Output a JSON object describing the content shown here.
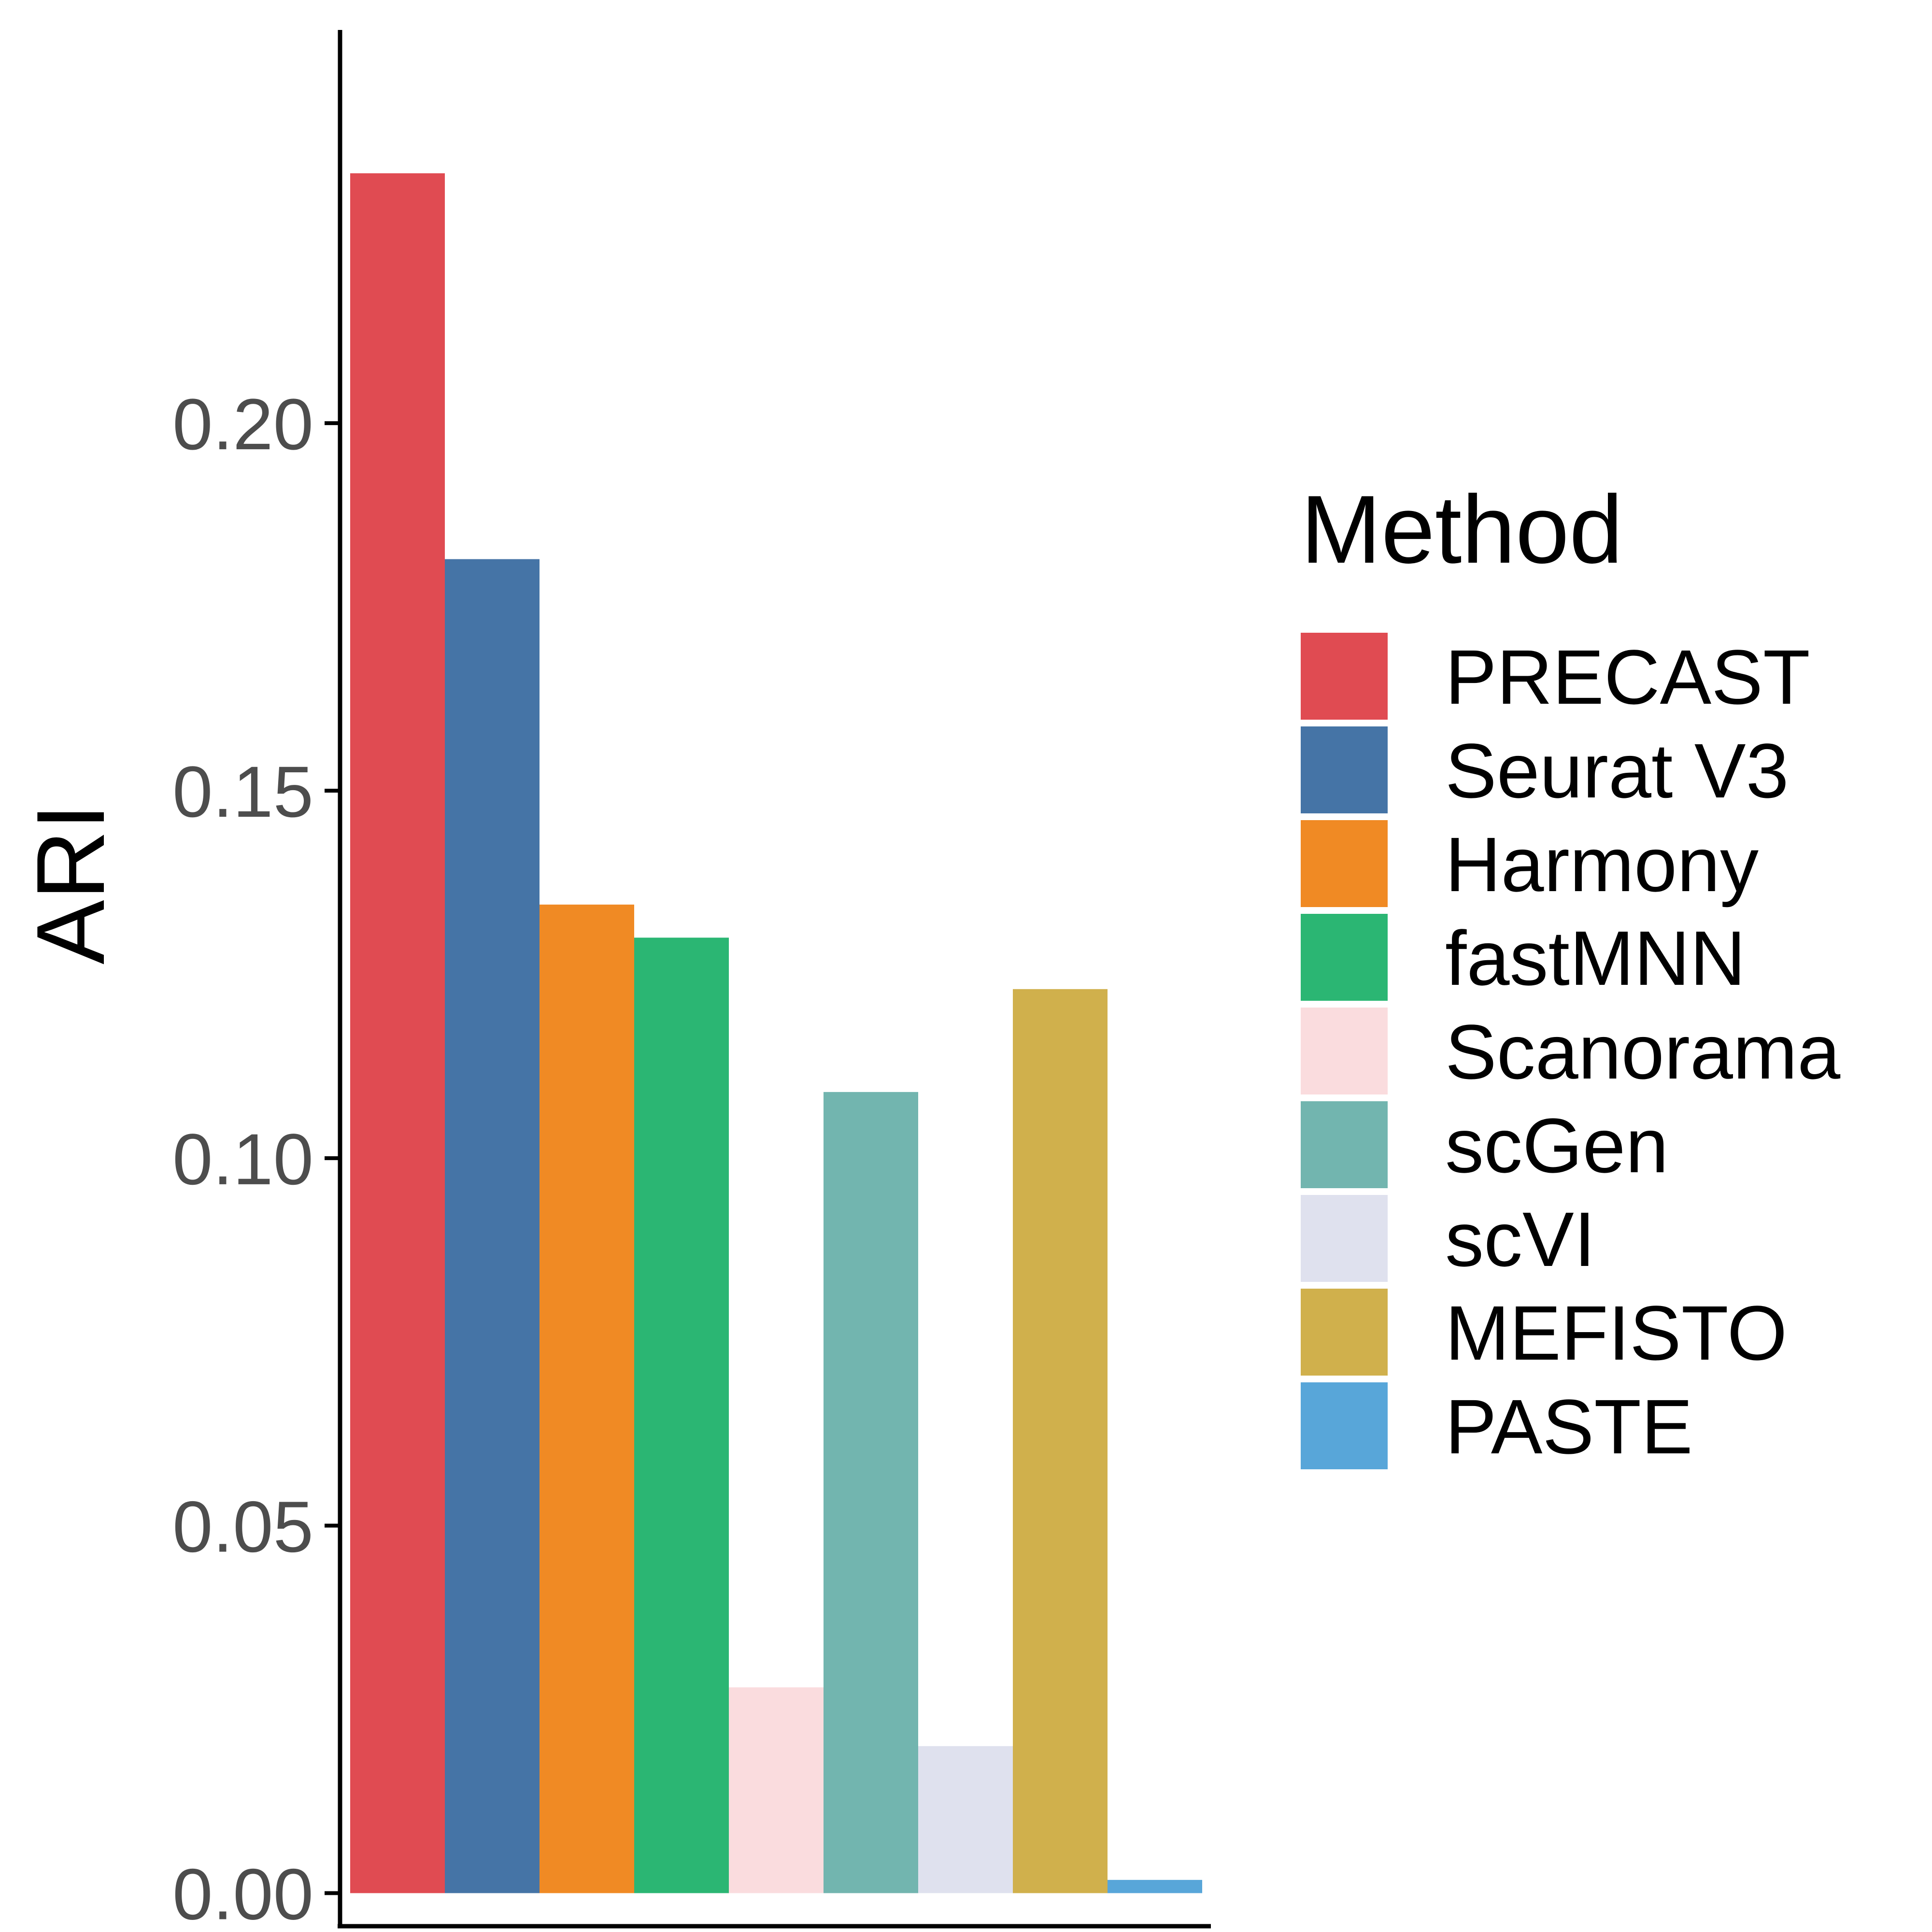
{
  "chart_data": {
    "type": "bar",
    "ylabel": "ARI",
    "legend_title": "Method",
    "legend_position": "right",
    "grid": false,
    "ylim": [
      -0.0045,
      0.2535
    ],
    "yticks": [
      {
        "value": 0.0,
        "label": "0.00"
      },
      {
        "value": 0.05,
        "label": "0.05"
      },
      {
        "value": 0.1,
        "label": "0.10"
      },
      {
        "value": 0.15,
        "label": "0.15"
      },
      {
        "value": 0.2,
        "label": "0.20"
      }
    ],
    "series": [
      {
        "name": "PRECAST",
        "value": 0.234,
        "color": "#E04B52"
      },
      {
        "name": "Seurat V3",
        "value": 0.1815,
        "color": "#4574A6"
      },
      {
        "name": "Harmony",
        "value": 0.1345,
        "color": "#F08A24"
      },
      {
        "name": "fastMNN",
        "value": 0.13,
        "color": "#2BB673"
      },
      {
        "name": "Scanorama",
        "value": 0.028,
        "color": "#FADCDE"
      },
      {
        "name": "scGen",
        "value": 0.109,
        "color": "#72B5AF"
      },
      {
        "name": "scVI",
        "value": 0.02,
        "color": "#DFE1EE"
      },
      {
        "name": "MEFISTO",
        "value": 0.123,
        "color": "#D0B04C"
      },
      {
        "name": "PASTE",
        "value": 0.0018,
        "color": "#58A6D9"
      }
    ]
  }
}
